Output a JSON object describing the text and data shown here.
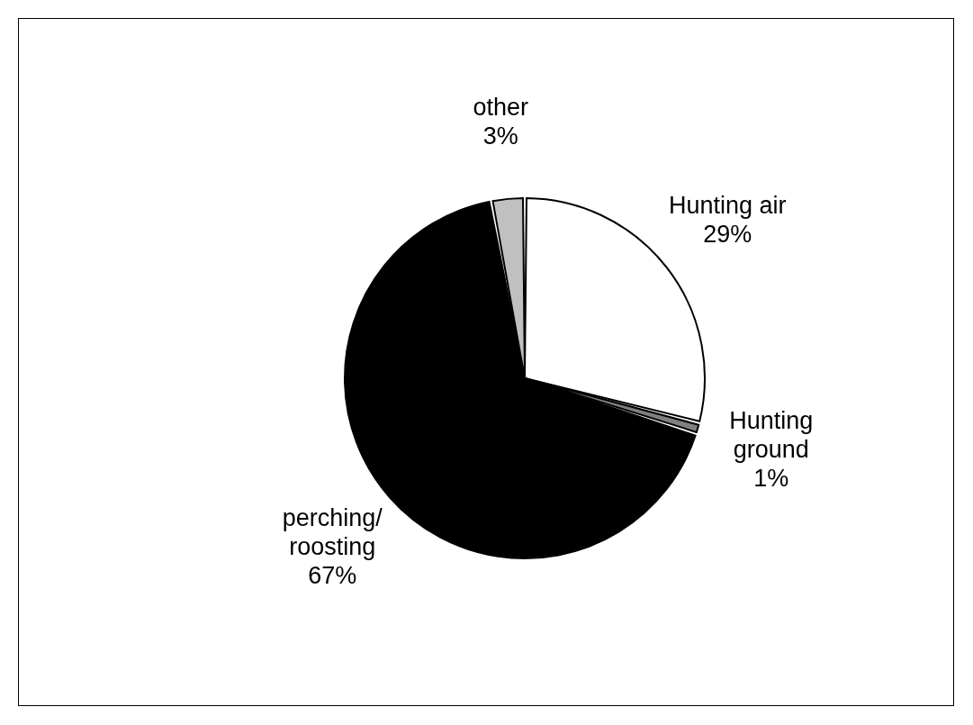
{
  "chart_data": {
    "type": "pie",
    "categories": [
      "Hunting air",
      "Hunting ground",
      "perching/roosting",
      "other"
    ],
    "values": [
      29,
      1,
      67,
      3
    ],
    "value_labels": [
      "29%",
      "1%",
      "67%",
      "3%"
    ],
    "colors": [
      "#ffffff",
      "#808080",
      "#000000",
      "#c0c0c0"
    ]
  }
}
